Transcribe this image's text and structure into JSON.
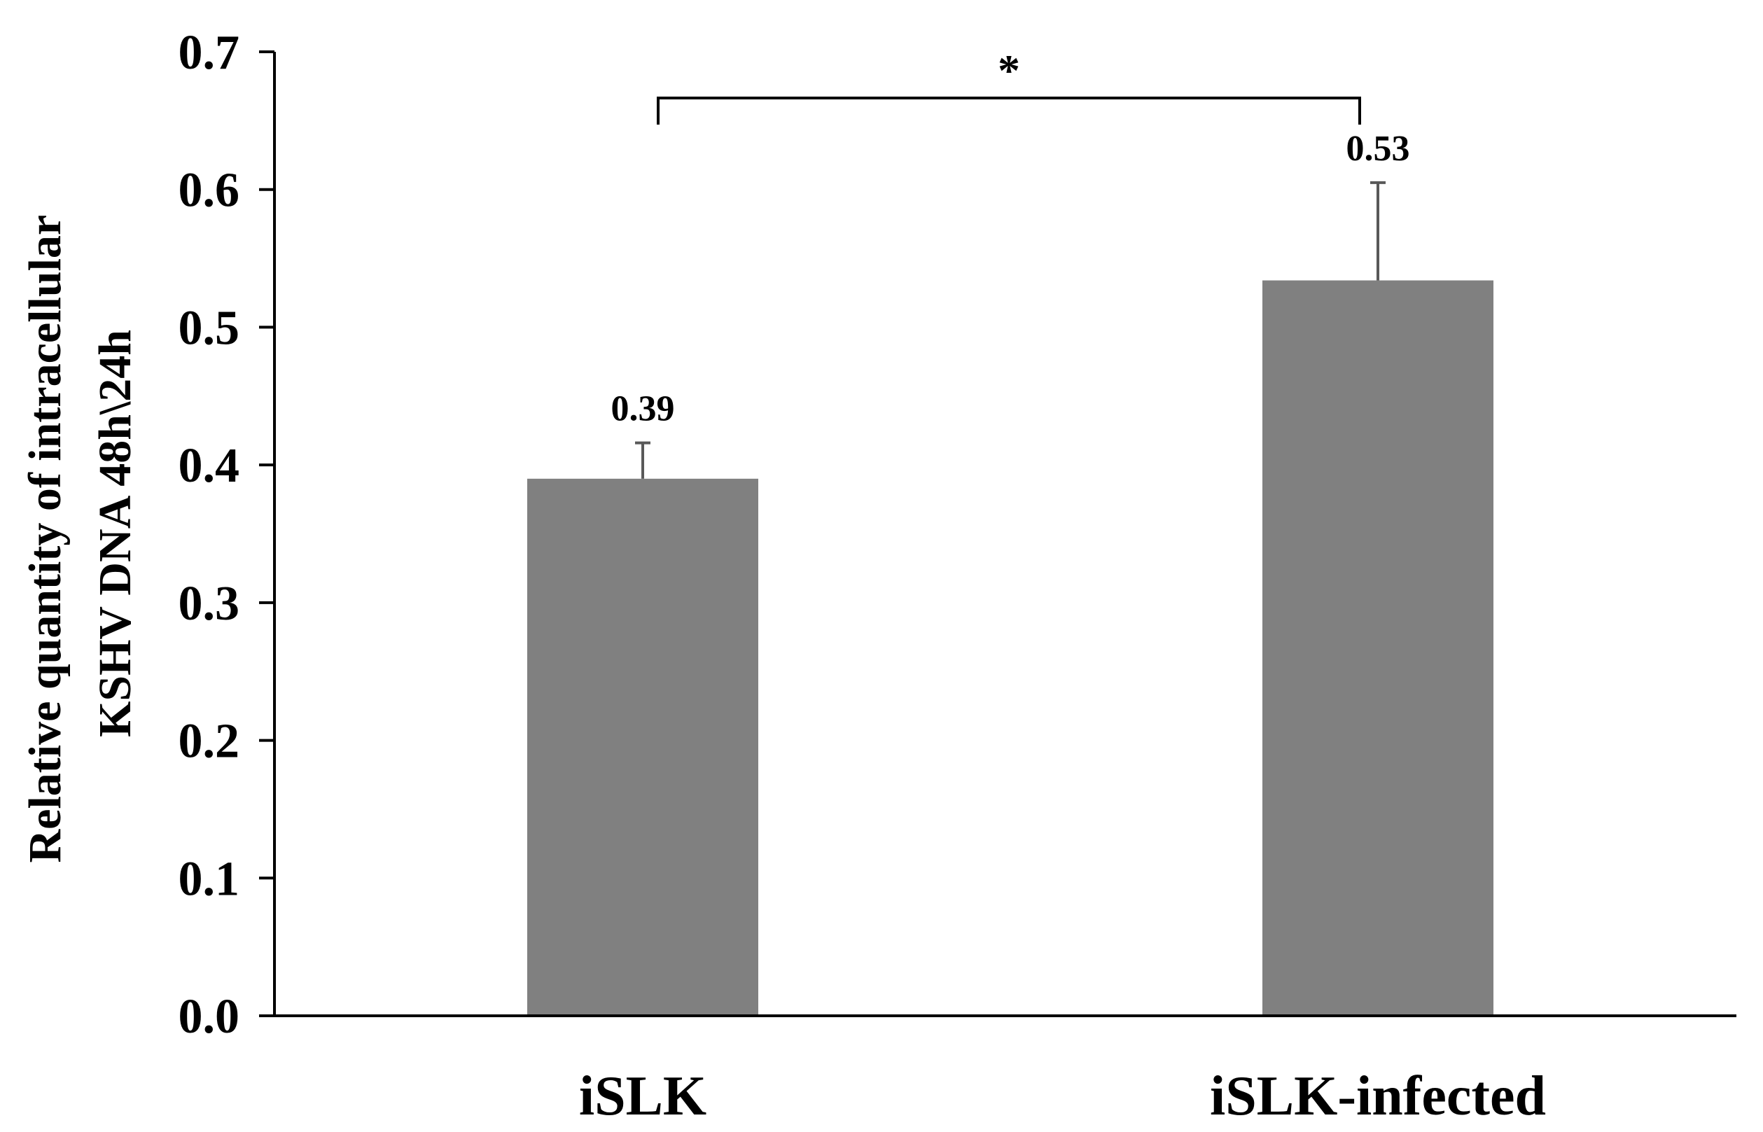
{
  "chart_data": {
    "type": "bar",
    "categories": [
      "iSLK",
      "iSLK-infected"
    ],
    "values": [
      0.39,
      0.534
    ],
    "errors": [
      0.026,
      0.071
    ],
    "value_labels": [
      "0.39",
      "0.53"
    ],
    "ylabel_lines": [
      "Relative quantity of intracellular",
      "KSHV DNA 48h\\24h"
    ],
    "ylim": [
      0,
      0.7
    ],
    "yticks": [
      0.0,
      0.1,
      0.2,
      0.3,
      0.4,
      0.5,
      0.6,
      0.7
    ],
    "ytick_labels": [
      "0.0",
      "0.1",
      "0.2",
      "0.3",
      "0.4",
      "0.5",
      "0.6",
      "0.7"
    ],
    "bar_color": "#808080",
    "error_color": "#595959",
    "significance": {
      "between": [
        0,
        1
      ],
      "label": "*"
    },
    "grid": false,
    "legend": "none"
  }
}
